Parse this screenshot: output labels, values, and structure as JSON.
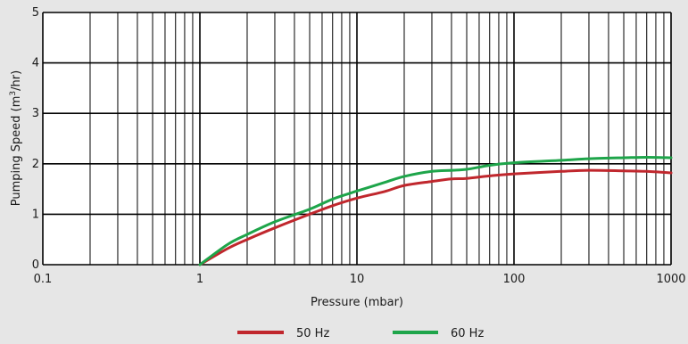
{
  "chart_data": {
    "type": "line",
    "title": "",
    "xlabel": "Pressure (mbar)",
    "ylabel_parts": [
      "Pumping Speed (m",
      "3",
      "/hr)"
    ],
    "x_scale": "log",
    "xlim": [
      0.1,
      1000
    ],
    "ylim": [
      0,
      5
    ],
    "xticks": [
      0.1,
      1,
      10,
      100,
      1000
    ],
    "xtick_labels": [
      "0.1",
      "1",
      "10",
      "100",
      "1000"
    ],
    "yticks": [
      0,
      1,
      2,
      3,
      4,
      5
    ],
    "ytick_labels": [
      "0",
      "1",
      "2",
      "3",
      "4",
      "5"
    ],
    "grid": true,
    "legend_position": "bottom",
    "series": [
      {
        "name": "50 Hz",
        "color": "#c0272d",
        "x": [
          1,
          1.5,
          2,
          3,
          5,
          7,
          10,
          15,
          20,
          30,
          40,
          50,
          70,
          100,
          200,
          300,
          500,
          700,
          1000
        ],
        "y": [
          0,
          0.32,
          0.5,
          0.73,
          1.0,
          1.17,
          1.32,
          1.45,
          1.57,
          1.65,
          1.7,
          1.71,
          1.76,
          1.8,
          1.85,
          1.87,
          1.86,
          1.85,
          1.82
        ]
      },
      {
        "name": "60 Hz",
        "color": "#1ea54a",
        "x": [
          1,
          1.5,
          2,
          3,
          5,
          7,
          10,
          15,
          20,
          30,
          40,
          50,
          70,
          100,
          200,
          300,
          500,
          700,
          1000
        ],
        "y": [
          0,
          0.4,
          0.6,
          0.85,
          1.1,
          1.3,
          1.46,
          1.63,
          1.75,
          1.85,
          1.87,
          1.89,
          1.97,
          2.02,
          2.07,
          2.1,
          2.12,
          2.13,
          2.12
        ]
      }
    ]
  }
}
